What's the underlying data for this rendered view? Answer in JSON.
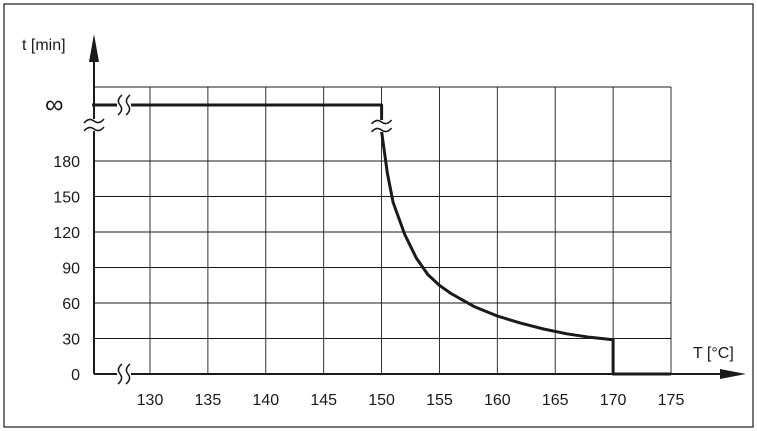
{
  "chart_data": {
    "type": "line",
    "title": "",
    "xlabel": "T [°C]",
    "ylabel": "t [min]",
    "x_ticks": [
      130,
      135,
      140,
      145,
      150,
      155,
      160,
      165,
      170,
      175
    ],
    "y_ticks": [
      0,
      30,
      60,
      90,
      120,
      150,
      180
    ],
    "y_infinity_label": "∞",
    "xlim": [
      125,
      175
    ],
    "ylim": [
      0,
      180
    ],
    "axis_breaks": [
      "x-axis between origin and 130",
      "y-axis between 180 and ∞"
    ],
    "grid": true,
    "series": [
      {
        "points": [
          {
            "x": 125,
            "y": "∞"
          },
          {
            "x": 150,
            "y": "∞"
          },
          {
            "x": 150,
            "y": 205
          },
          {
            "x": 150.5,
            "y": 170
          },
          {
            "x": 151,
            "y": 145
          },
          {
            "x": 152,
            "y": 118
          },
          {
            "x": 153,
            "y": 98
          },
          {
            "x": 154,
            "y": 84
          },
          {
            "x": 155,
            "y": 75
          },
          {
            "x": 156,
            "y": 68
          },
          {
            "x": 158,
            "y": 57
          },
          {
            "x": 160,
            "y": 49
          },
          {
            "x": 162,
            "y": 43
          },
          {
            "x": 164,
            "y": 38
          },
          {
            "x": 166,
            "y": 34
          },
          {
            "x": 168,
            "y": 31
          },
          {
            "x": 170,
            "y": 29
          },
          {
            "x": 170,
            "y": 0
          },
          {
            "x": 175,
            "y": 0
          }
        ]
      }
    ]
  }
}
